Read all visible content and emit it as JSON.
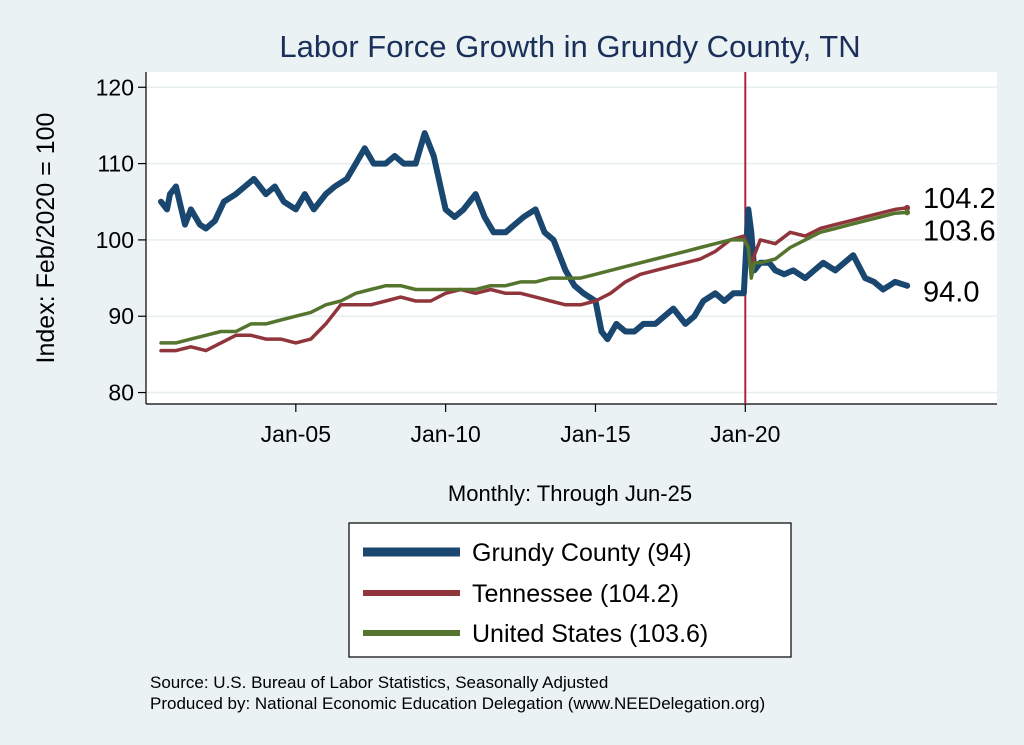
{
  "chart_data": {
    "type": "line",
    "title": "Labor Force Growth in Grundy  County, TN",
    "xlabel": "Monthly: Through Jun-25",
    "ylabel": "Index: Feb/2020 = 100",
    "ylim": [
      78.5,
      122
    ],
    "yticks": [
      80,
      90,
      100,
      110,
      120
    ],
    "xlim": [
      2000.0,
      2028.4
    ],
    "xticks": [
      {
        "label": "Jan-05",
        "value": 2005.0
      },
      {
        "label": "Jan-10",
        "value": 2010.0
      },
      {
        "label": "Jan-15",
        "value": 2015.0
      },
      {
        "label": "Jan-20",
        "value": 2020.0
      }
    ],
    "reference_line": {
      "x": 2020.0,
      "color": "#b0233f"
    },
    "series": [
      {
        "name": "Grundy  County",
        "legend_label": "Grundy  County (94)",
        "end_label": "94.0",
        "color": "#1a476f",
        "width": 6,
        "x": [
          2000.5,
          2000.7,
          2000.8,
          2001.0,
          2001.3,
          2001.5,
          2001.8,
          2002.0,
          2002.3,
          2002.6,
          2003.0,
          2003.3,
          2003.6,
          2004.0,
          2004.3,
          2004.6,
          2005.0,
          2005.3,
          2005.6,
          2006.0,
          2006.3,
          2006.7,
          2007.0,
          2007.3,
          2007.6,
          2008.0,
          2008.3,
          2008.6,
          2009.0,
          2009.3,
          2009.6,
          2010.0,
          2010.3,
          2010.6,
          2011.0,
          2011.3,
          2011.6,
          2012.0,
          2012.3,
          2012.6,
          2013.0,
          2013.3,
          2013.6,
          2014.0,
          2014.3,
          2014.6,
          2015.0,
          2015.2,
          2015.4,
          2015.7,
          2016.0,
          2016.3,
          2016.6,
          2017.0,
          2017.3,
          2017.6,
          2018.0,
          2018.3,
          2018.6,
          2019.0,
          2019.3,
          2019.6,
          2019.95,
          2020.1,
          2020.2,
          2020.3,
          2020.5,
          2020.8,
          2021.0,
          2021.3,
          2021.6,
          2022.0,
          2022.3,
          2022.6,
          2023.0,
          2023.3,
          2023.6,
          2024.0,
          2024.3,
          2024.6,
          2025.0,
          2025.4
        ],
        "values": [
          105,
          104,
          106,
          107,
          102,
          104,
          102,
          101.5,
          102.5,
          105,
          106,
          107,
          108,
          106,
          107,
          105,
          104,
          106,
          104,
          106,
          107,
          108,
          110,
          112,
          110,
          110,
          111,
          110,
          110,
          114,
          111,
          104,
          103,
          104,
          106,
          103,
          101,
          101,
          102,
          103,
          104,
          101,
          100,
          96,
          94,
          93,
          92,
          88,
          87,
          89,
          88,
          88,
          89,
          89,
          90,
          91,
          89,
          90,
          92,
          93,
          92,
          93,
          93,
          104,
          101,
          96,
          97,
          97,
          96,
          95.5,
          96,
          95,
          96,
          97,
          96,
          97,
          98,
          95,
          94.5,
          93.5,
          94.5,
          94.0
        ]
      },
      {
        "name": "Tennessee",
        "legend_label": "Tennessee (104.2)",
        "end_label": "104.2",
        "color": "#90353b",
        "width": 3.5,
        "x": [
          2000.5,
          2001.0,
          2001.5,
          2002.0,
          2002.5,
          2003.0,
          2003.5,
          2004.0,
          2004.5,
          2005.0,
          2005.5,
          2006.0,
          2006.5,
          2007.0,
          2007.5,
          2008.0,
          2008.5,
          2009.0,
          2009.5,
          2010.0,
          2010.5,
          2011.0,
          2011.5,
          2012.0,
          2012.5,
          2013.0,
          2013.5,
          2014.0,
          2014.5,
          2015.0,
          2015.5,
          2016.0,
          2016.5,
          2017.0,
          2017.5,
          2018.0,
          2018.5,
          2019.0,
          2019.5,
          2019.95,
          2020.1,
          2020.2,
          2020.3,
          2020.5,
          2021.0,
          2021.5,
          2022.0,
          2022.5,
          2023.0,
          2023.5,
          2024.0,
          2024.5,
          2025.0,
          2025.4
        ],
        "values": [
          85.5,
          85.5,
          86,
          85.5,
          86.5,
          87.5,
          87.5,
          87,
          87,
          86.5,
          87,
          89,
          91.5,
          91.5,
          91.5,
          92,
          92.5,
          92,
          92,
          93,
          93.5,
          93,
          93.5,
          93,
          93,
          92.5,
          92,
          91.5,
          91.5,
          92,
          93,
          94.5,
          95.5,
          96,
          96.5,
          97,
          97.5,
          98.5,
          100,
          100.5,
          99,
          96,
          98,
          100,
          99.5,
          101,
          100.5,
          101.5,
          102,
          102.5,
          103,
          103.5,
          104,
          104.2
        ]
      },
      {
        "name": "United States",
        "legend_label": "United States (103.6)",
        "end_label": "103.6",
        "color": "#55752f",
        "width": 3.5,
        "x": [
          2000.5,
          2001.0,
          2001.5,
          2002.0,
          2002.5,
          2003.0,
          2003.5,
          2004.0,
          2004.5,
          2005.0,
          2005.5,
          2006.0,
          2006.5,
          2007.0,
          2007.5,
          2008.0,
          2008.5,
          2009.0,
          2009.5,
          2010.0,
          2010.5,
          2011.0,
          2011.5,
          2012.0,
          2012.5,
          2013.0,
          2013.5,
          2014.0,
          2014.5,
          2015.0,
          2015.5,
          2016.0,
          2016.5,
          2017.0,
          2017.5,
          2018.0,
          2018.5,
          2019.0,
          2019.5,
          2019.95,
          2020.1,
          2020.2,
          2020.3,
          2020.5,
          2021.0,
          2021.5,
          2022.0,
          2022.5,
          2023.0,
          2023.5,
          2024.0,
          2024.5,
          2025.0,
          2025.4
        ],
        "values": [
          86.5,
          86.5,
          87,
          87.5,
          88,
          88,
          89,
          89,
          89.5,
          90,
          90.5,
          91.5,
          92,
          93,
          93.5,
          94,
          94,
          93.5,
          93.5,
          93.5,
          93.5,
          93.5,
          94,
          94,
          94.5,
          94.5,
          95,
          95,
          95,
          95.5,
          96,
          96.5,
          97,
          97.5,
          98,
          98.5,
          99,
          99.5,
          100,
          100,
          99,
          95,
          97,
          97,
          97.5,
          99,
          100,
          101,
          101.5,
          102,
          102.5,
          103,
          103.5,
          103.6
        ]
      }
    ]
  },
  "source_lines": [
    "Source: U.S. Bureau of Labor Statistics, Seasonally Adjusted",
    "Produced by: National Economic Education Delegation (www.NEEDelegation.org)"
  ]
}
